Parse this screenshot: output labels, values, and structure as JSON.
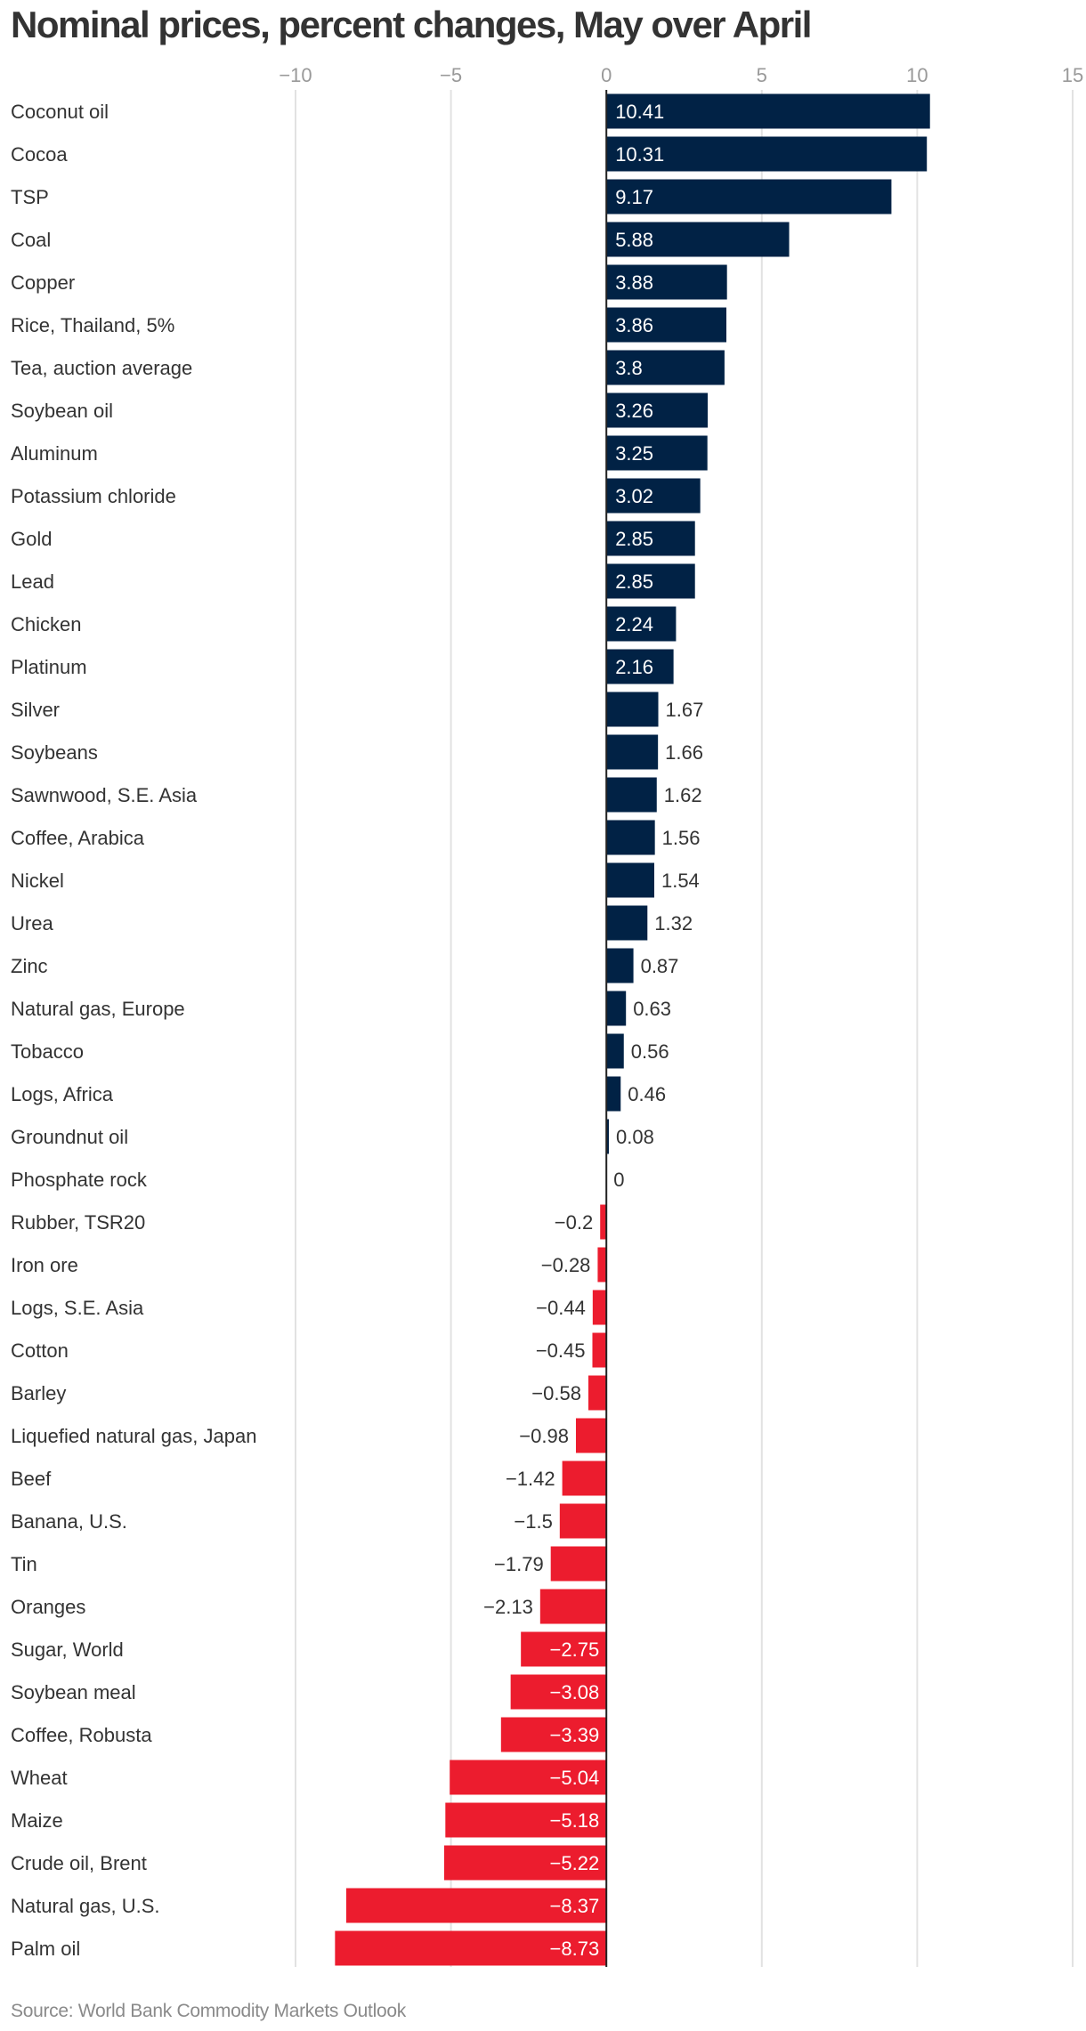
{
  "chart_data": {
    "type": "bar",
    "orientation": "horizontal",
    "title": "Nominal prices, percent changes, May over April",
    "source": "Source: World Bank Commodity Markets Outlook",
    "xlim": [
      -10,
      15
    ],
    "xticks": [
      -10,
      -5,
      0,
      5,
      10,
      15
    ],
    "xtick_labels": [
      "−10",
      "−5",
      "0",
      "5",
      "10",
      "15"
    ],
    "grid": true,
    "colors": {
      "positive": "#012245",
      "negative": "#ec1c2e"
    },
    "categories": [
      "Coconut oil",
      "Cocoa",
      "TSP",
      "Coal",
      "Copper",
      "Rice, Thailand, 5%",
      "Tea, auction average",
      "Soybean oil",
      "Aluminum",
      "Potassium chloride",
      "Gold",
      "Lead",
      "Chicken",
      "Platinum",
      "Silver",
      "Soybeans",
      "Sawnwood, S.E. Asia",
      "Coffee, Arabica",
      "Nickel",
      "Urea",
      "Zinc",
      "Natural gas, Europe",
      "Tobacco",
      "Logs, Africa",
      "Groundnut oil",
      "Phosphate rock",
      "Rubber, TSR20",
      "Iron ore",
      "Logs, S.E. Asia",
      "Cotton",
      "Barley",
      "Liquefied natural gas, Japan",
      "Beef",
      "Banana, U.S.",
      "Tin",
      "Oranges",
      "Sugar, World",
      "Soybean meal",
      "Coffee, Robusta",
      "Wheat",
      "Maize",
      "Crude oil, Brent",
      "Natural gas, U.S.",
      "Palm oil"
    ],
    "values": [
      10.41,
      10.31,
      9.17,
      5.88,
      3.88,
      3.86,
      3.8,
      3.26,
      3.25,
      3.02,
      2.85,
      2.85,
      2.24,
      2.16,
      1.67,
      1.66,
      1.62,
      1.56,
      1.54,
      1.32,
      0.87,
      0.63,
      0.56,
      0.46,
      0.08,
      0,
      -0.2,
      -0.28,
      -0.44,
      -0.45,
      -0.58,
      -0.98,
      -1.42,
      -1.5,
      -1.79,
      -2.13,
      -2.75,
      -3.08,
      -3.39,
      -5.04,
      -5.18,
      -5.22,
      -8.37,
      -8.73
    ]
  }
}
